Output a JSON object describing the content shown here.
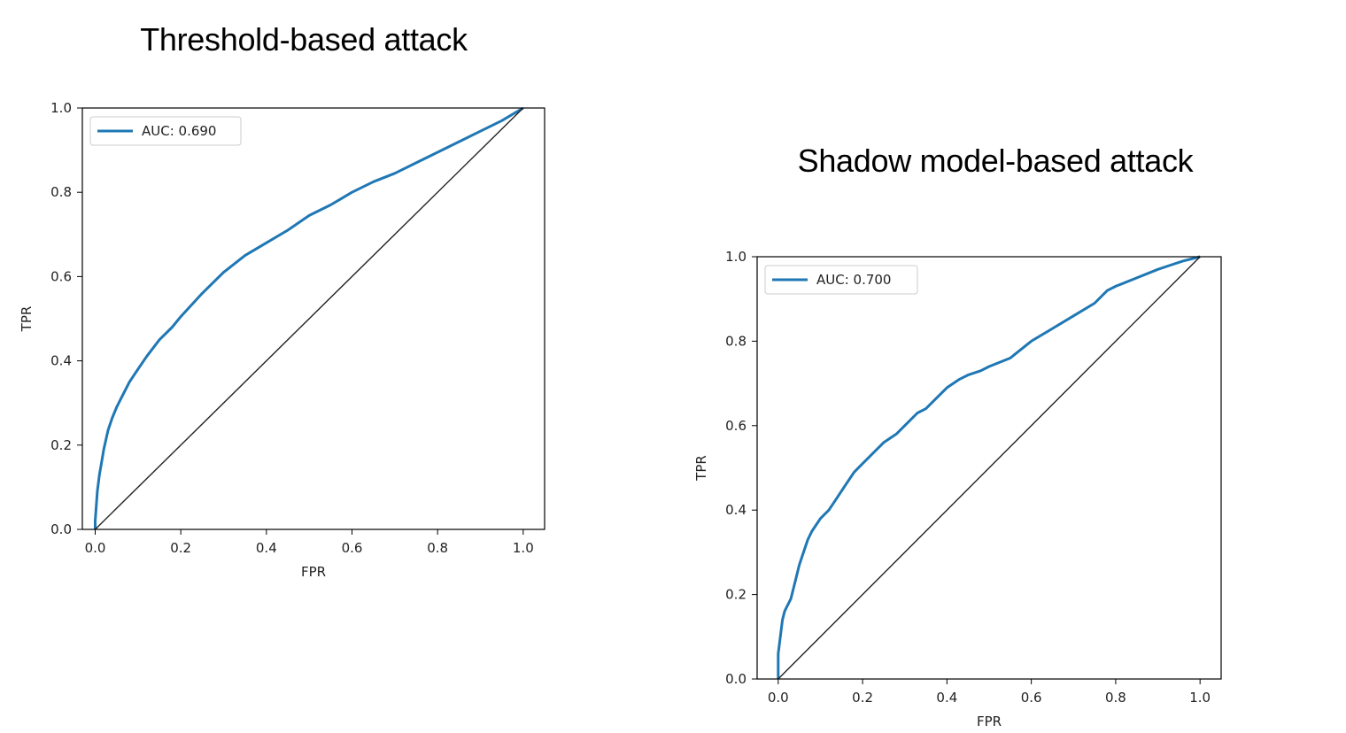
{
  "chart_data": [
    {
      "type": "line",
      "title": "Threshold-based attack",
      "xlabel": "FPR",
      "ylabel": "TPR",
      "xlim": [
        -0.03,
        1.05
      ],
      "ylim": [
        0.0,
        1.0
      ],
      "xticks": [
        "0.0",
        "0.2",
        "0.4",
        "0.6",
        "0.8",
        "1.0"
      ],
      "yticks": [
        "0.0",
        "0.2",
        "0.4",
        "0.6",
        "0.8",
        "1.0"
      ],
      "grid": false,
      "legend_position": "upper-left",
      "series": [
        {
          "name": "AUC: 0.690",
          "color": "#1f77b4",
          "x": [
            0.0,
            0.0,
            0.005,
            0.01,
            0.015,
            0.02,
            0.03,
            0.04,
            0.05,
            0.06,
            0.08,
            0.1,
            0.12,
            0.15,
            0.18,
            0.2,
            0.25,
            0.3,
            0.35,
            0.4,
            0.45,
            0.5,
            0.55,
            0.6,
            0.65,
            0.7,
            0.75,
            0.8,
            0.85,
            0.9,
            0.95,
            1.0
          ],
          "y": [
            0.0,
            0.02,
            0.09,
            0.13,
            0.16,
            0.19,
            0.235,
            0.265,
            0.29,
            0.31,
            0.35,
            0.38,
            0.41,
            0.45,
            0.48,
            0.505,
            0.56,
            0.61,
            0.65,
            0.68,
            0.71,
            0.745,
            0.77,
            0.8,
            0.825,
            0.845,
            0.87,
            0.895,
            0.92,
            0.945,
            0.97,
            1.0
          ]
        },
        {
          "name": "",
          "color": "#222222",
          "x": [
            0.0,
            1.0
          ],
          "y": [
            0.0,
            1.0
          ]
        }
      ]
    },
    {
      "type": "line",
      "title": "Shadow model-based attack",
      "xlabel": "FPR",
      "ylabel": "TPR",
      "xlim": [
        -0.05,
        1.05
      ],
      "ylim": [
        0.0,
        1.0
      ],
      "xticks": [
        "0.0",
        "0.2",
        "0.4",
        "0.6",
        "0.8",
        "1.0"
      ],
      "yticks": [
        "0.0",
        "0.2",
        "0.4",
        "0.6",
        "0.8",
        "1.0"
      ],
      "grid": false,
      "legend_position": "upper-left",
      "series": [
        {
          "name": "AUC: 0.700",
          "color": "#1f77b4",
          "x": [
            0.0,
            0.0,
            0.005,
            0.01,
            0.015,
            0.02,
            0.03,
            0.04,
            0.05,
            0.06,
            0.07,
            0.08,
            0.1,
            0.12,
            0.14,
            0.16,
            0.18,
            0.2,
            0.22,
            0.25,
            0.28,
            0.3,
            0.33,
            0.35,
            0.38,
            0.4,
            0.43,
            0.45,
            0.48,
            0.5,
            0.55,
            0.6,
            0.65,
            0.7,
            0.75,
            0.78,
            0.8,
            0.85,
            0.9,
            0.93,
            0.96,
            1.0
          ],
          "y": [
            0.0,
            0.06,
            0.1,
            0.14,
            0.16,
            0.17,
            0.19,
            0.23,
            0.27,
            0.3,
            0.33,
            0.35,
            0.38,
            0.4,
            0.43,
            0.46,
            0.49,
            0.51,
            0.53,
            0.56,
            0.58,
            0.6,
            0.63,
            0.64,
            0.67,
            0.69,
            0.71,
            0.72,
            0.73,
            0.74,
            0.76,
            0.8,
            0.83,
            0.86,
            0.89,
            0.92,
            0.93,
            0.95,
            0.97,
            0.98,
            0.99,
            1.0
          ]
        },
        {
          "name": "",
          "color": "#222222",
          "x": [
            0.0,
            1.0
          ],
          "y": [
            0.0,
            1.0
          ]
        }
      ]
    }
  ]
}
